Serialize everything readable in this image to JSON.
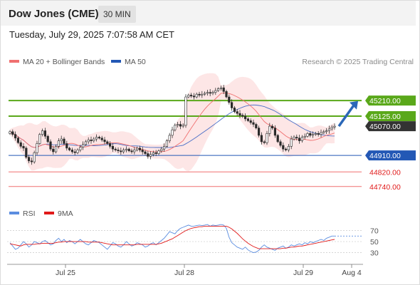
{
  "header": {
    "instrument": "Dow Jones (CME)",
    "interval": "30 MIN"
  },
  "timestamp": "Tuesday, July 29, 2025 7:07:58 AM CET",
  "legend": {
    "ma_bollinger": "MA 20 + Bollinger Bands",
    "ma50": "MA 50",
    "credit": "Research © 2025 Trading Central",
    "rsi": "RSI",
    "rsi_ma": "9MA"
  },
  "colors": {
    "resistance": "#5aa81a",
    "support_blue": "#2358b5",
    "support_red": "#f07070",
    "ma20": "#f07070",
    "ma50": "#4a6fc7",
    "bollinger_fill": "#fde2e2",
    "rsi": "#5b8de0",
    "rsi_ma": "#e11a1a",
    "arrow": "#2b67b8",
    "last_price_box": "#333333"
  },
  "chart_data": [
    {
      "type": "candlestick",
      "y_range": [
        44630,
        45390
      ],
      "x_tick_labels": [
        "Jul 25",
        "Jul 28",
        "Jul 29",
        "Aug 4"
      ],
      "levels": [
        {
          "name": "resistance-2",
          "value": 45210,
          "label": "45210.00",
          "style": "resistance"
        },
        {
          "name": "resistance-1",
          "value": 45125,
          "label": "45125.00",
          "style": "resistance"
        },
        {
          "name": "last-price",
          "value": 45070,
          "label": "45070.00",
          "style": "last"
        },
        {
          "name": "support-1",
          "value": 44910,
          "label": "44910.00",
          "style": "support_blue"
        },
        {
          "name": "support-2",
          "value": 44820,
          "label": "44820.00",
          "style": "support_red"
        },
        {
          "name": "support-3",
          "value": 44740,
          "label": "44740.00",
          "style": "support_red"
        }
      ],
      "arrow": {
        "from": 45070,
        "to": 45200,
        "direction": "up"
      },
      "closes": [
        45040,
        45025,
        45005,
        44980,
        44960,
        44950,
        44900,
        44880,
        44875,
        44925,
        44975,
        45025,
        45045,
        45015,
        44985,
        44945,
        44930,
        44960,
        44990,
        45000,
        44975,
        44950,
        44940,
        44930,
        44925,
        44940,
        44955,
        44970,
        44985,
        44995,
        44990,
        45000,
        45010,
        45005,
        44995,
        44985,
        44975,
        44960,
        44945,
        44940,
        44935,
        44930,
        44940,
        44945,
        44935,
        44930,
        44940,
        44950,
        44940,
        44930,
        44920,
        44905,
        44915,
        44925,
        44920,
        44935,
        44945,
        44960,
        44990,
        45020,
        45050,
        45075,
        45080,
        45070,
        45075,
        45230,
        45240,
        45235,
        45230,
        45245,
        45240,
        45245,
        45250,
        45255,
        45250,
        45255,
        45265,
        45275,
        45280,
        45260,
        45230,
        45200,
        45170,
        45150,
        45140,
        45130,
        45125,
        45110,
        45100,
        45090,
        45080,
        45060,
        45020,
        44985,
        44980,
        45030,
        45070,
        45060,
        45020,
        44985,
        44965,
        44945,
        44940,
        44960,
        45000,
        45010,
        45005,
        44990,
        45010,
        45015,
        45030,
        45020,
        45025,
        45030,
        45025,
        45035,
        45040,
        45045,
        45055,
        45065,
        45070
      ]
    },
    {
      "type": "line",
      "name": "RSI",
      "y_range": [
        10,
        85
      ],
      "y_ticks": [
        70,
        50,
        30
      ],
      "reference_lines": [
        70,
        50,
        30
      ],
      "values": [
        48,
        42,
        36,
        38,
        44,
        50,
        46,
        40,
        44,
        50,
        48,
        46,
        50,
        52,
        48,
        44,
        46,
        52,
        56,
        50,
        54,
        48,
        52,
        50,
        46,
        50,
        54,
        50,
        46,
        44,
        48,
        52,
        50,
        48,
        44,
        40,
        36,
        42,
        48,
        46,
        42,
        40,
        44,
        50,
        46,
        42,
        44,
        48,
        46,
        44,
        40,
        42,
        46,
        48,
        44,
        48,
        52,
        56,
        62,
        68,
        66,
        64,
        70,
        74,
        76,
        78,
        80,
        78,
        78,
        79,
        80,
        79,
        80,
        81,
        78,
        80,
        79,
        80,
        81,
        80,
        74,
        58,
        48,
        44,
        40,
        38,
        36,
        40,
        35,
        32,
        30,
        31,
        34,
        40,
        44,
        40,
        38,
        36,
        34,
        38,
        40,
        42,
        38,
        40,
        44,
        42,
        44,
        46,
        44,
        48,
        46,
        50,
        48,
        50,
        52,
        54,
        52,
        56,
        58,
        60,
        60
      ],
      "ma_values": [
        46,
        45,
        44,
        43,
        42,
        44,
        45,
        45,
        45,
        45,
        46,
        46,
        47,
        47,
        47,
        47,
        47,
        48,
        49,
        49,
        50,
        50,
        50,
        50,
        50,
        50,
        50,
        50,
        50,
        49,
        49,
        49,
        49,
        49,
        48,
        47,
        46,
        45,
        44,
        44,
        44,
        44,
        44,
        44,
        44,
        44,
        44,
        45,
        45,
        45,
        45,
        45,
        45,
        45,
        45,
        46,
        47,
        49,
        51,
        53,
        55,
        58,
        61,
        64,
        67,
        70,
        72,
        74,
        75,
        76,
        77,
        77,
        78,
        78,
        78,
        78,
        78,
        78,
        78,
        78,
        78,
        76,
        73,
        69,
        65,
        60,
        55,
        51,
        47,
        44,
        41,
        39,
        37,
        37,
        37,
        37,
        37,
        37,
        37,
        37,
        37,
        38,
        38,
        39,
        40,
        40,
        41,
        42,
        42,
        43,
        44,
        45,
        46,
        47,
        48,
        49,
        50,
        51,
        52,
        53,
        54
      ]
    }
  ]
}
